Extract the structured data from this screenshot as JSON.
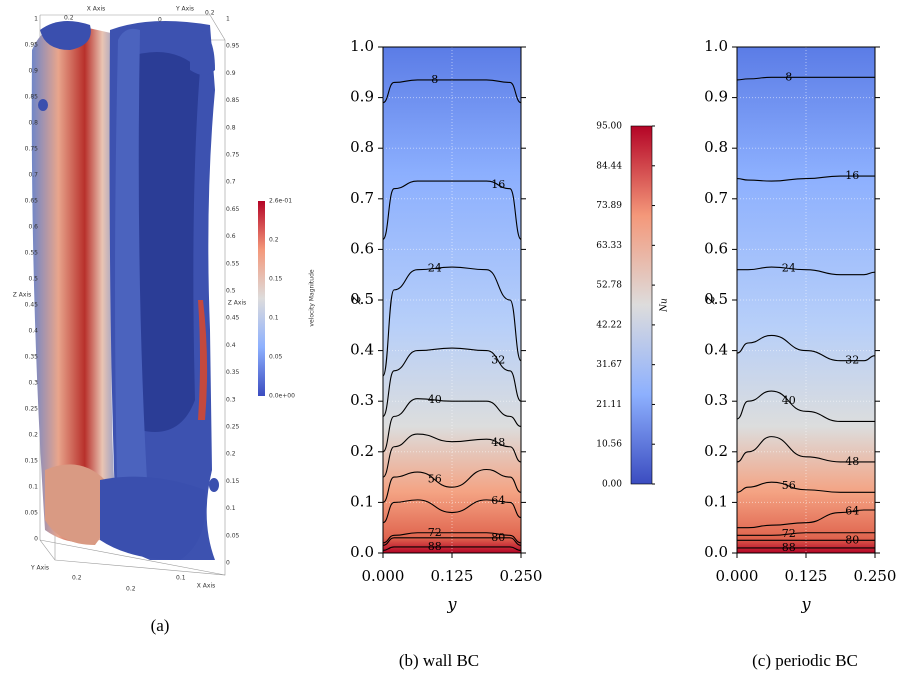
{
  "panel_a": {
    "caption": "(a)",
    "colorbar_title": "velocity Magnitude",
    "colorbar_labels": [
      "2.6e-01",
      "0.2",
      "0.15",
      "0.1",
      "0.05",
      "0.0e+00"
    ],
    "axis_titles": [
      "X Axis",
      "Y Axis",
      "Z Axis",
      "Z Axis",
      "Y Axis",
      "X Axis"
    ],
    "left_ticks": [
      "1",
      "0.95",
      "0.9",
      "0.85",
      "0.8",
      "0.75",
      "0.7",
      "0.65",
      "0.6",
      "0.55",
      "0.5",
      "0.45",
      "0.4",
      "0.35",
      "0.3",
      "0.25",
      "0.2",
      "0.15",
      "0.1",
      "0.05",
      "0"
    ],
    "right_ticks": [
      "1",
      "0.95",
      "0.9",
      "0.85",
      "0.8",
      "0.75",
      "0.7",
      "0.65",
      "0.6",
      "0.55",
      "0.5",
      "0.45",
      "0.4",
      "0.35",
      "0.3",
      "0.25",
      "0.2",
      "0.15",
      "0.1",
      "0.05",
      "0"
    ],
    "top_ticks": [
      "0.2",
      "0",
      "0.2"
    ],
    "bottom_ticks": [
      "0.2",
      "0.1",
      "0.2"
    ]
  },
  "colorbar": {
    "label": "Nu",
    "lim": [
      0,
      95
    ],
    "ticks": [
      {
        "value": 95,
        "label": "95.00"
      },
      {
        "value": 84.44,
        "label": "84.44"
      },
      {
        "value": 73.89,
        "label": "73.89"
      },
      {
        "value": 63.33,
        "label": "63.33"
      },
      {
        "value": 52.78,
        "label": "52.78"
      },
      {
        "value": 42.22,
        "label": "42.22"
      },
      {
        "value": 31.67,
        "label": "31.67"
      },
      {
        "value": 21.11,
        "label": "21.11"
      },
      {
        "value": 10.56,
        "label": "10.56"
      },
      {
        "value": 0,
        "label": "0.00"
      }
    ]
  },
  "chart_data": [
    {
      "type": "contour",
      "caption": "(b) wall BC",
      "x_label": "y",
      "y_label": "z",
      "xlim": [
        0,
        0.25
      ],
      "ylim": [
        0,
        1
      ],
      "xticks": [
        {
          "value": 0,
          "label": "0.000"
        },
        {
          "value": 0.125,
          "label": "0.125"
        },
        {
          "value": 0.25,
          "label": "0.250"
        }
      ],
      "yticks": [
        {
          "value": 0,
          "label": "0.0"
        },
        {
          "value": 0.1,
          "label": "0.1"
        },
        {
          "value": 0.2,
          "label": "0.2"
        },
        {
          "value": 0.3,
          "label": "0.3"
        },
        {
          "value": 0.4,
          "label": "0.4"
        },
        {
          "value": 0.5,
          "label": "0.5"
        },
        {
          "value": 0.6,
          "label": "0.6"
        },
        {
          "value": 0.7,
          "label": "0.7"
        },
        {
          "value": 0.8,
          "label": "0.8"
        },
        {
          "value": 0.9,
          "label": "0.9"
        },
        {
          "value": 1,
          "label": "1.0"
        }
      ],
      "grid": true,
      "x": [
        0,
        0.02,
        0.0625,
        0.125,
        0.1875,
        0.23,
        0.25
      ],
      "levels": [
        {
          "level": 8,
          "values": [
            0.89,
            0.93,
            0.935,
            0.935,
            0.935,
            0.93,
            0.89
          ]
        },
        {
          "level": 16,
          "values": [
            0.62,
            0.72,
            0.735,
            0.735,
            0.735,
            0.72,
            0.62
          ]
        },
        {
          "level": 24,
          "values": [
            0.35,
            0.52,
            0.56,
            0.565,
            0.56,
            0.5,
            0.38
          ]
        },
        {
          "level": 32,
          "values": [
            0.27,
            0.36,
            0.4,
            0.405,
            0.4,
            0.36,
            0.3
          ]
        },
        {
          "level": 40,
          "values": [
            0.2,
            0.27,
            0.305,
            0.3,
            0.3,
            0.27,
            0.25
          ]
        },
        {
          "level": 48,
          "values": [
            0.15,
            0.21,
            0.235,
            0.22,
            0.225,
            0.21,
            0.18
          ]
        },
        {
          "level": 56,
          "values": [
            0.1,
            0.15,
            0.16,
            0.13,
            0.165,
            0.15,
            0.12
          ]
        },
        {
          "level": 64,
          "values": [
            0.06,
            0.1,
            0.105,
            0.08,
            0.105,
            0.1,
            0.07
          ]
        },
        {
          "level": 72,
          "values": [
            0.02,
            0.035,
            0.04,
            0.04,
            0.04,
            0.035,
            0.02
          ]
        },
        {
          "level": 80,
          "values": [
            0.015,
            0.03,
            0.03,
            0.03,
            0.03,
            0.03,
            0.015
          ]
        },
        {
          "level": 88,
          "values": [
            0.005,
            0.012,
            0.012,
            0.012,
            0.012,
            0.012,
            0.005
          ]
        }
      ]
    },
    {
      "type": "contour",
      "caption": "(c) periodic BC",
      "x_label": "y",
      "y_label": "z",
      "xlim": [
        0,
        0.25
      ],
      "ylim": [
        0,
        1
      ],
      "xticks": [
        {
          "value": 0,
          "label": "0.000"
        },
        {
          "value": 0.125,
          "label": "0.125"
        },
        {
          "value": 0.25,
          "label": "0.250"
        }
      ],
      "yticks": [
        {
          "value": 0,
          "label": "0.0"
        },
        {
          "value": 0.1,
          "label": "0.1"
        },
        {
          "value": 0.2,
          "label": "0.2"
        },
        {
          "value": 0.3,
          "label": "0.3"
        },
        {
          "value": 0.4,
          "label": "0.4"
        },
        {
          "value": 0.5,
          "label": "0.5"
        },
        {
          "value": 0.6,
          "label": "0.6"
        },
        {
          "value": 0.7,
          "label": "0.7"
        },
        {
          "value": 0.8,
          "label": "0.8"
        },
        {
          "value": 0.9,
          "label": "0.9"
        },
        {
          "value": 1,
          "label": "1.0"
        }
      ],
      "grid": true,
      "x": [
        0,
        0.02,
        0.0625,
        0.125,
        0.1875,
        0.23,
        0.25
      ],
      "levels": [
        {
          "level": 8,
          "values": [
            0.935,
            0.937,
            0.94,
            0.94,
            0.94,
            0.94,
            0.94
          ]
        },
        {
          "level": 16,
          "values": [
            0.74,
            0.737,
            0.735,
            0.74,
            0.745,
            0.745,
            0.745
          ]
        },
        {
          "level": 24,
          "values": [
            0.56,
            0.56,
            0.565,
            0.56,
            0.55,
            0.55,
            0.555
          ]
        },
        {
          "level": 32,
          "values": [
            0.395,
            0.415,
            0.43,
            0.4,
            0.38,
            0.38,
            0.39
          ]
        },
        {
          "level": 40,
          "values": [
            0.265,
            0.3,
            0.32,
            0.28,
            0.26,
            0.26,
            0.26
          ]
        },
        {
          "level": 48,
          "values": [
            0.18,
            0.2,
            0.23,
            0.19,
            0.18,
            0.18,
            0.18
          ]
        },
        {
          "level": 56,
          "values": [
            0.12,
            0.13,
            0.14,
            0.125,
            0.12,
            0.12,
            0.12
          ]
        },
        {
          "level": 64,
          "values": [
            0.05,
            0.05,
            0.055,
            0.06,
            0.08,
            0.085,
            0.085
          ]
        },
        {
          "level": 72,
          "values": [
            0.035,
            0.035,
            0.035,
            0.04,
            0.04,
            0.04,
            0.04
          ]
        },
        {
          "level": 80,
          "values": [
            0.025,
            0.025,
            0.025,
            0.025,
            0.025,
            0.025,
            0.025
          ]
        },
        {
          "level": 88,
          "values": [
            0.01,
            0.01,
            0.01,
            0.01,
            0.01,
            0.01,
            0.01
          ]
        }
      ]
    }
  ]
}
